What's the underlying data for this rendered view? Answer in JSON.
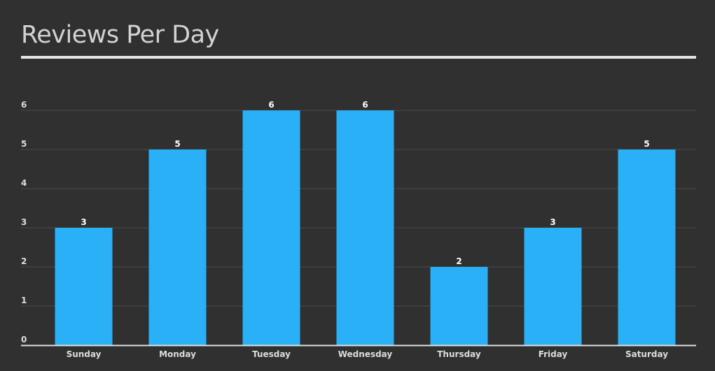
{
  "chart_data": {
    "type": "bar",
    "title": "Reviews Per Day",
    "categories": [
      "Sunday",
      "Monday",
      "Tuesday",
      "Wednesday",
      "Thursday",
      "Friday",
      "Saturday"
    ],
    "values": [
      3,
      5,
      6,
      6,
      2,
      3,
      5
    ],
    "ylim": [
      0,
      6
    ],
    "yticks": [
      0,
      1,
      2,
      3,
      4,
      5,
      6
    ],
    "grid": true,
    "data_labels": true,
    "xlabel": "",
    "ylabel": "",
    "colors": {
      "bar": "#29b0f7",
      "background": "#303030",
      "grid": "#4a4a4a",
      "axis": "#e0e0e0",
      "text": "#dcdcdc"
    }
  }
}
